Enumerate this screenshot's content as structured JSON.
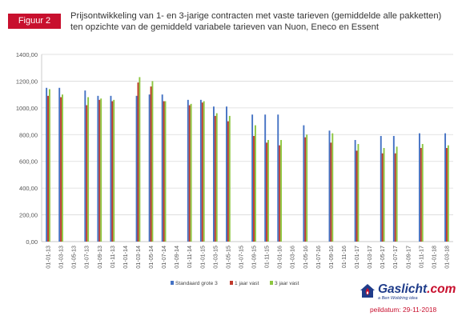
{
  "figure_label": "Figuur 2",
  "title_line1": "Prijsontwikkeling van 1- en 3-jarige contracten met vaste tarieven (gemiddelde alle pakketten)",
  "title_line2": "ten opzichte van de gemiddeld variabele tarieven van Nuon, Eneco en Essent",
  "logo": {
    "text": "Gaslicht",
    "domain": ".com",
    "tagline": "a Ben Woldring idea",
    "icon": "house-flame-logo-icon"
  },
  "peildatum": "peildatum: 29-11-2018",
  "colors": {
    "accent": "#c8102e",
    "series": [
      "#4472c4",
      "#c0392b",
      "#8dc63f"
    ]
  },
  "chart_data": {
    "type": "bar",
    "title": "",
    "xlabel": "",
    "ylabel": "",
    "ylim": [
      0,
      1400
    ],
    "yticks": [
      0,
      200,
      400,
      600,
      800,
      1000,
      1200,
      1400
    ],
    "ytick_labels": [
      "0,00",
      "200,00",
      "400,00",
      "600,00",
      "800,00",
      "1000,00",
      "1200,00",
      "1400,00"
    ],
    "grid": true,
    "legend_position": "bottom",
    "categories": [
      "01-01-13",
      "01-03-13",
      "01-05-13",
      "01-07-13",
      "01-09-13",
      "01-11-13",
      "01-01-14",
      "01-03-14",
      "01-05-14",
      "01-07-14",
      "01-09-14",
      "01-11-14",
      "01-01-15",
      "01-03-15",
      "01-05-15",
      "01-07-15",
      "01-09-15",
      "01-11-15",
      "01-01-16",
      "01-03-16",
      "01-05-16",
      "01-07-16",
      "01-09-16",
      "01-11-16",
      "01-01-17",
      "01-03-17",
      "01-05-17",
      "01-07-17",
      "01-09-17",
      "01-11-17",
      "01-01-18",
      "01-03-18"
    ],
    "series": [
      {
        "name": "Standaard grote 3",
        "values": [
          1150,
          1150,
          null,
          1130,
          1090,
          1090,
          null,
          1090,
          1100,
          1100,
          null,
          1060,
          1060,
          1010,
          1010,
          null,
          950,
          950,
          950,
          null,
          870,
          null,
          830,
          null,
          760,
          null,
          790,
          790,
          null,
          810,
          null,
          810
        ]
      },
      {
        "name": "1 jaar vast",
        "values": [
          1090,
          1080,
          null,
          1020,
          1060,
          1050,
          null,
          1190,
          1160,
          1050,
          null,
          1020,
          1040,
          940,
          900,
          null,
          790,
          740,
          720,
          null,
          780,
          null,
          740,
          null,
          680,
          null,
          660,
          660,
          null,
          700,
          null,
          700
        ]
      },
      {
        "name": "3 jaar vast",
        "values": [
          1140,
          1100,
          null,
          1080,
          1070,
          1060,
          null,
          1230,
          1200,
          1050,
          null,
          1030,
          1050,
          960,
          940,
          null,
          870,
          760,
          760,
          null,
          800,
          null,
          810,
          null,
          730,
          null,
          700,
          710,
          null,
          730,
          null,
          720
        ]
      }
    ]
  }
}
